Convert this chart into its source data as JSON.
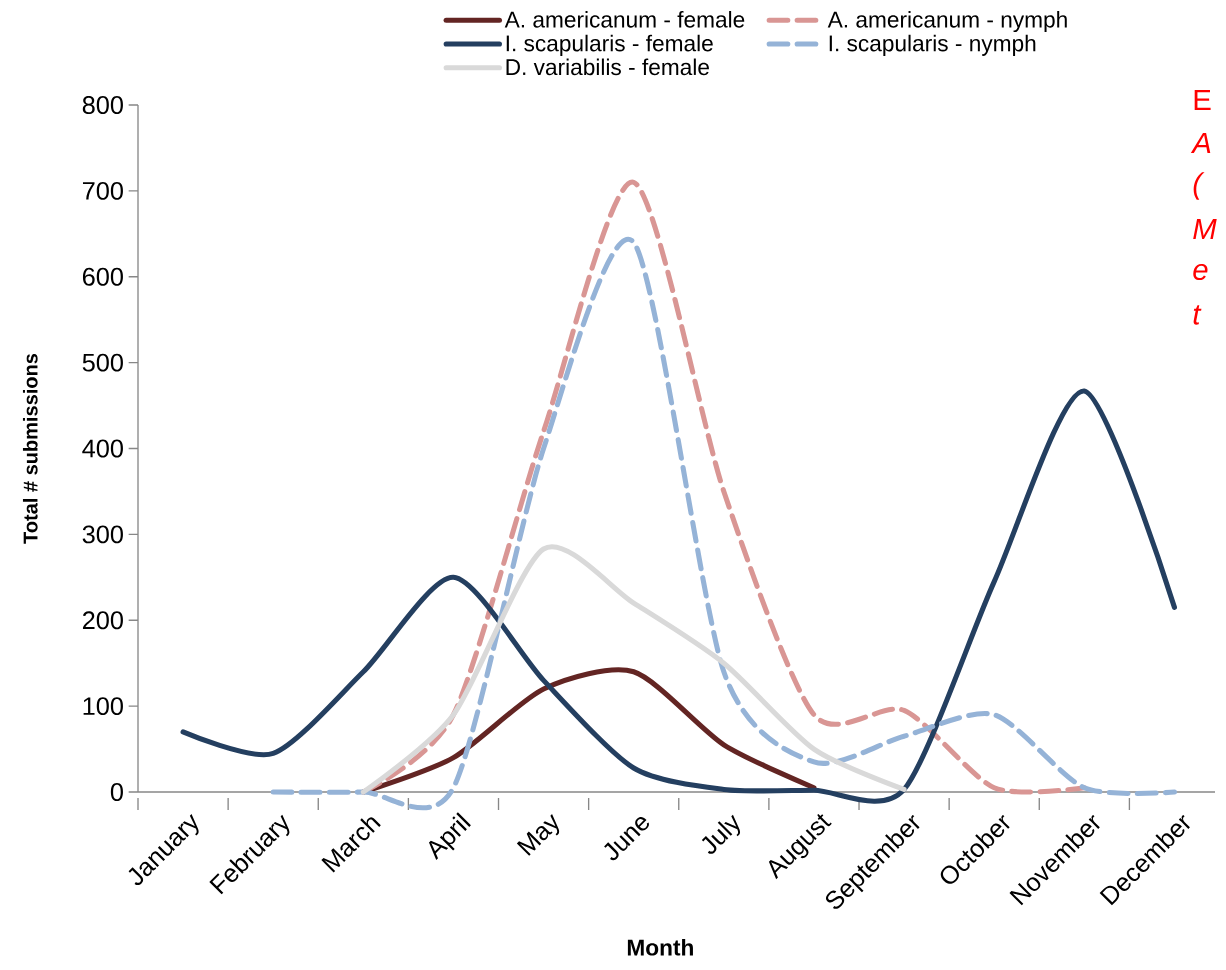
{
  "chart_data": {
    "type": "line",
    "xlabel": "Month",
    "ylabel": "Total # submissions",
    "categories": [
      "January",
      "February",
      "March",
      "April",
      "May",
      "June",
      "July",
      "August",
      "September",
      "October",
      "November",
      "December"
    ],
    "series": [
      {
        "name": "A. americanum - female",
        "color": "#632523",
        "line_style": "solid",
        "values": [
          null,
          null,
          0,
          40,
          120,
          140,
          55,
          5,
          null,
          null,
          null,
          null
        ]
      },
      {
        "name": "A. americanum - nymph",
        "color": "#d99694",
        "line_style": "dashed",
        "values": [
          null,
          null,
          0,
          90,
          420,
          710,
          350,
          90,
          95,
          5,
          5,
          null
        ]
      },
      {
        "name": "I. scapularis - female",
        "color": "#243f60",
        "line_style": "solid",
        "values": [
          70,
          45,
          140,
          250,
          130,
          28,
          3,
          2,
          3,
          245,
          467,
          215
        ]
      },
      {
        "name": "I. scapularis - nymph",
        "color": "#95b3d7",
        "line_style": "dashed",
        "values": [
          null,
          0,
          0,
          5,
          400,
          640,
          140,
          35,
          65,
          90,
          5,
          0
        ]
      },
      {
        "name": "D. variabilis - female",
        "color": "#d9d9d9",
        "line_style": "solid",
        "values": [
          null,
          null,
          0,
          90,
          283,
          220,
          150,
          50,
          3,
          null,
          null,
          null
        ]
      }
    ],
    "ylim": [
      0,
      800
    ],
    "yticks": [
      0,
      100,
      200,
      300,
      400,
      500,
      600,
      700,
      800
    ],
    "grid": false,
    "legend": "top",
    "marker": "none",
    "annotations": [
      "E",
      "A",
      "(",
      "M",
      "e",
      "t"
    ]
  }
}
